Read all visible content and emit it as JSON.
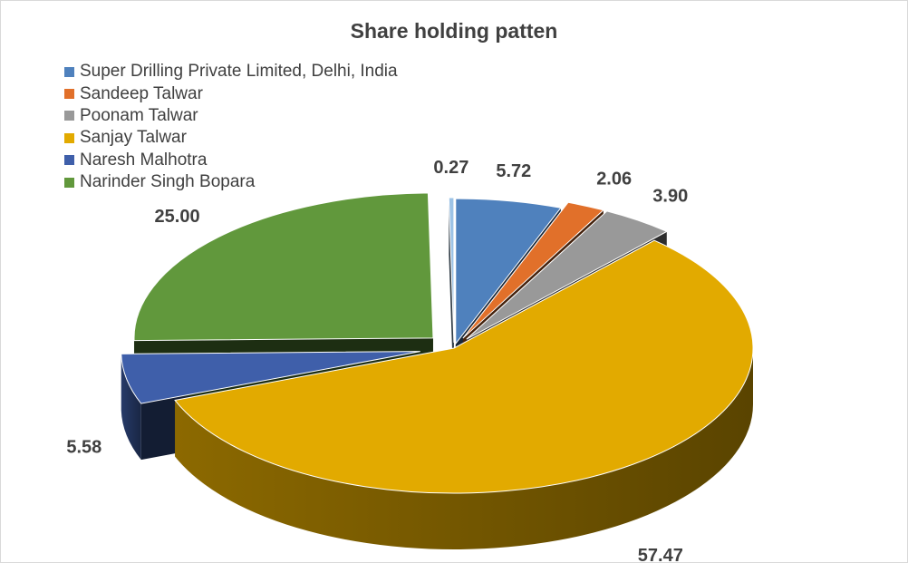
{
  "chart_data": {
    "type": "pie",
    "title": "Share holding patten",
    "legend_position": "top-left",
    "three_d": true,
    "exploded": true,
    "slices": [
      {
        "label": "Super Drilling Private Limited, Delhi, India",
        "value": 5.72,
        "display": "5.72",
        "color": "#4f81bd"
      },
      {
        "label": "Sandeep Talwar",
        "value": 2.06,
        "display": "2.06",
        "color": "#e1702a"
      },
      {
        "label": "Poonam Talwar",
        "value": 3.9,
        "display": "3.90",
        "color": "#999999"
      },
      {
        "label": "Sanjay Talwar",
        "value": 57.47,
        "display": "57.47",
        "color": "#e2aa00"
      },
      {
        "label": "Naresh Malhotra",
        "value": 5.58,
        "display": "5.58",
        "color": "#3f5faa"
      },
      {
        "label": "Narinder Singh Bopara",
        "value": 25.0,
        "display": "25.00",
        "color": "#61983c"
      },
      {
        "label": "",
        "value": 0.27,
        "display": "0.27",
        "color": "#9dc3e6"
      }
    ]
  }
}
